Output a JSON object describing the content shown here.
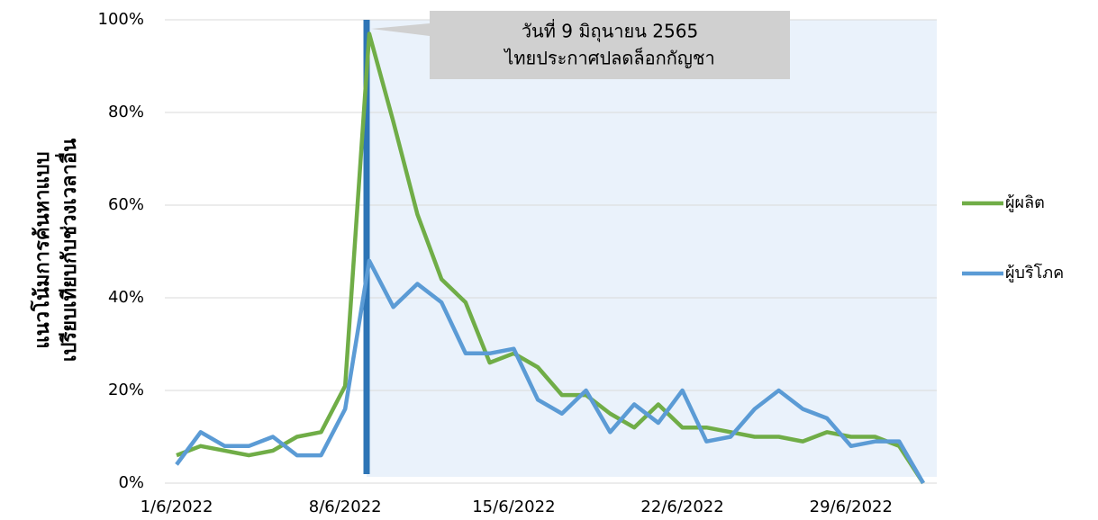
{
  "chart_data": {
    "type": "line",
    "y_label": [
      "แนวโน้มการค้นหาแบบ",
      "เปรียบเทียบกับช่วงเวลาอื่น"
    ],
    "annotation": [
      "วันที่ 9 มิถุนายน 2565",
      "ไทยประกาศปลดล็อกกัญชา"
    ],
    "categories": [
      "1/6/2022",
      null,
      null,
      null,
      null,
      null,
      null,
      "8/6/2022",
      null,
      null,
      null,
      null,
      null,
      null,
      "15/6/2022",
      null,
      null,
      null,
      null,
      null,
      null,
      "22/6/2022",
      null,
      null,
      null,
      null,
      null,
      null,
      "29/6/2022",
      null,
      null,
      null
    ],
    "series": [
      {
        "name": "ผู้ผลิต",
        "color": "#70ad47",
        "values": [
          6,
          8,
          7,
          6,
          7,
          10,
          11,
          21,
          97,
          78,
          58,
          44,
          39,
          26,
          28,
          25,
          19,
          19,
          15,
          12,
          17,
          12,
          12,
          11,
          10,
          10,
          9,
          11,
          10,
          10,
          8,
          0
        ]
      },
      {
        "name": "ผู้บริโภค",
        "color": "#5b9bd5",
        "values": [
          4,
          11,
          8,
          8,
          10,
          6,
          6,
          16,
          48,
          38,
          43,
          39,
          28,
          28,
          29,
          18,
          15,
          20,
          11,
          17,
          13,
          20,
          9,
          10,
          16,
          20,
          16,
          14,
          8,
          9,
          9,
          0
        ]
      }
    ],
    "ylim": [
      0,
      100
    ],
    "yticks": [
      {
        "value": 0,
        "label": "0%"
      },
      {
        "value": 20,
        "label": "20%"
      },
      {
        "value": 40,
        "label": "40%"
      },
      {
        "value": 60,
        "label": "60%"
      },
      {
        "value": 80,
        "label": "80%"
      },
      {
        "value": 100,
        "label": "100%"
      }
    ],
    "grid": true,
    "legend": "right"
  }
}
